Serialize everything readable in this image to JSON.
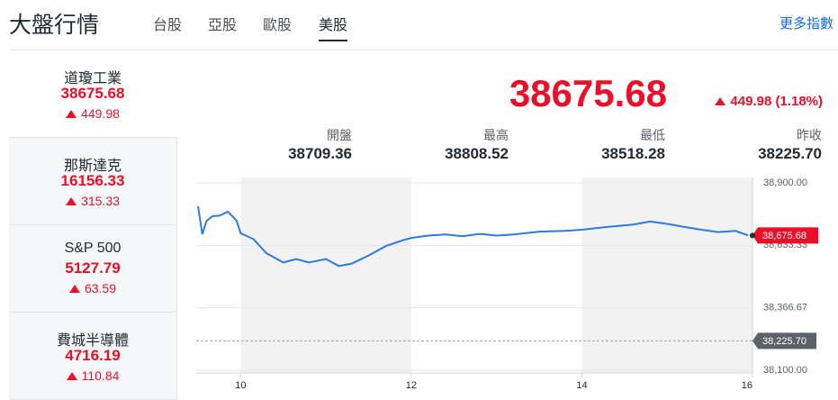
{
  "header": {
    "title": "大盤行情",
    "tabs": [
      "台股",
      "亞股",
      "歐股",
      "美股"
    ],
    "selected_tab": 3,
    "more_link": "更多指數"
  },
  "sidebar": [
    {
      "name": "道瓊工業",
      "price": "38675.68",
      "change": "449.98"
    },
    {
      "name": "那斯達克",
      "price": "16156.33",
      "change": "315.33"
    },
    {
      "name": "S&P 500",
      "price": "5127.79",
      "change": "63.59"
    },
    {
      "name": "費城半導體",
      "price": "4716.19",
      "change": "110.84"
    }
  ],
  "quote": {
    "price": "38675.68",
    "change": "449.98 (1.18%)",
    "stats": [
      {
        "label": "開盤",
        "value": "38709.36"
      },
      {
        "label": "最高",
        "value": "38808.52"
      },
      {
        "label": "最低",
        "value": "38518.28"
      },
      {
        "label": "昨收",
        "value": "38225.70"
      }
    ]
  },
  "chart_data": {
    "type": "line",
    "x": [
      9.5,
      9.55,
      9.6,
      9.67,
      9.75,
      9.85,
      9.95,
      10.0,
      10.15,
      10.3,
      10.5,
      10.65,
      10.8,
      11.0,
      11.15,
      11.3,
      11.5,
      11.7,
      11.9,
      12.0,
      12.2,
      12.4,
      12.6,
      12.8,
      13.0,
      13.2,
      13.5,
      13.8,
      14.0,
      14.3,
      14.6,
      14.8,
      15.0,
      15.2,
      15.4,
      15.6,
      15.8,
      15.95
    ],
    "series": [
      {
        "color": "#2a7ae2",
        "values": [
          38800,
          38681,
          38738,
          38758,
          38760,
          38777,
          38740,
          38685,
          38660,
          38600,
          38560,
          38575,
          38560,
          38575,
          38545,
          38555,
          38590,
          38630,
          38655,
          38665,
          38675,
          38680,
          38672,
          38682,
          38675,
          38680,
          38692,
          38695,
          38700,
          38712,
          38722,
          38735,
          38725,
          38712,
          38700,
          38690,
          38695,
          38675.68
        ]
      }
    ],
    "xlim": [
      9.5,
      16
    ],
    "xticks": [
      10,
      12,
      14,
      16
    ],
    "ylim": [
      38100,
      38900
    ],
    "yticks": [
      {
        "value": 38900,
        "label": "38,900.00"
      },
      {
        "value": 38633.33,
        "label": "38,633.33"
      },
      {
        "value": 38366.67,
        "label": "38,366.67"
      },
      {
        "value": 38100,
        "label": "38,100.00"
      }
    ],
    "grid": true,
    "reference_line": {
      "value": 38225.7,
      "label": "38,225.70",
      "color": "#5b636a"
    },
    "last_label": {
      "value": 38675.68,
      "label": "38,675.68",
      "color": "#eb0f29"
    }
  }
}
